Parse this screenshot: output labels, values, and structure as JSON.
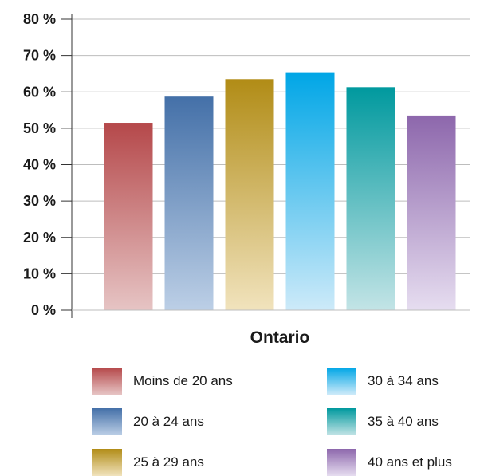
{
  "chart_data": {
    "type": "bar",
    "title": "",
    "xlabel": "",
    "ylabel": "",
    "categories": [
      "Ontario"
    ],
    "y_ticks": [
      "0 %",
      "10 %",
      "20 %",
      "30 %",
      "40 %",
      "50 %",
      "60 %",
      "70 %",
      "80 %"
    ],
    "ylim": [
      0,
      80
    ],
    "grid": true,
    "legend_placement": "bottom",
    "series": [
      {
        "name": "Moins de 20 ans",
        "values": [
          51.5
        ],
        "color_top": "#b5484a",
        "color_bottom": "#e6c4c4"
      },
      {
        "name": "20 à 24 ans",
        "values": [
          58.7
        ],
        "color_top": "#4470a8",
        "color_bottom": "#bccfe6"
      },
      {
        "name": "25 à 29 ans",
        "values": [
          63.5
        ],
        "color_top": "#b18c16",
        "color_bottom": "#f1e3bd"
      },
      {
        "name": "30 à 34 ans",
        "values": [
          65.4
        ],
        "color_top": "#00a6e6",
        "color_bottom": "#cdeaf9"
      },
      {
        "name": "35 à 40 ans",
        "values": [
          61.3
        ],
        "color_top": "#00999e",
        "color_bottom": "#c3e4e6"
      },
      {
        "name": "40 ans et plus",
        "values": [
          53.5
        ],
        "color_top": "#8d67ac",
        "color_bottom": "#e6ddf0"
      }
    ]
  }
}
